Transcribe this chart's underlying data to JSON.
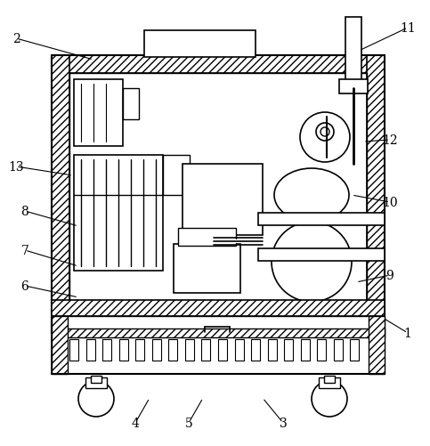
{
  "bg_color": "#ffffff",
  "line_color": "#000000",
  "label_color": "#000000",
  "figsize": [
    4.83,
    5.02
  ],
  "dpi": 100,
  "label_positions": {
    "1": [
      458,
      375,
      430,
      358
    ],
    "2": [
      18,
      44,
      105,
      68
    ],
    "3": [
      318,
      476,
      295,
      448
    ],
    "4": [
      152,
      476,
      168,
      448
    ],
    "5": [
      212,
      476,
      228,
      448
    ],
    "6": [
      28,
      322,
      88,
      335
    ],
    "7": [
      28,
      282,
      88,
      300
    ],
    "8": [
      28,
      238,
      88,
      255
    ],
    "9": [
      438,
      310,
      400,
      318
    ],
    "10": [
      438,
      228,
      395,
      220
    ],
    "11": [
      458,
      32,
      403,
      58
    ],
    "12": [
      438,
      158,
      408,
      160
    ],
    "13": [
      18,
      188,
      82,
      198
    ]
  }
}
